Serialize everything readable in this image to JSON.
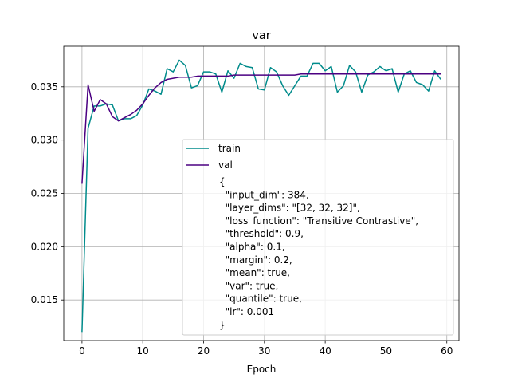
{
  "chart_data": {
    "type": "line",
    "title": "var",
    "xlabel": "Epoch",
    "ylabel": "",
    "xlim": [
      -3,
      62
    ],
    "ylim": [
      0.0112,
      0.0388
    ],
    "x_ticks": [
      0,
      10,
      20,
      30,
      40,
      50,
      60
    ],
    "y_ticks": [
      0.015,
      0.02,
      0.025,
      0.03,
      0.035
    ],
    "y_tick_labels": [
      "0.015",
      "0.020",
      "0.025",
      "0.030",
      "0.035"
    ],
    "grid": true,
    "legend_position": "center-right",
    "x": [
      0,
      1,
      2,
      3,
      4,
      5,
      6,
      7,
      8,
      9,
      10,
      11,
      12,
      13,
      14,
      15,
      16,
      17,
      18,
      19,
      20,
      21,
      22,
      23,
      24,
      25,
      26,
      27,
      28,
      29,
      30,
      31,
      32,
      33,
      34,
      35,
      36,
      37,
      38,
      39,
      40,
      41,
      42,
      43,
      44,
      45,
      46,
      47,
      48,
      49,
      50,
      51,
      52,
      53,
      54,
      55,
      56,
      57,
      58,
      59
    ],
    "series": [
      {
        "name": "train",
        "color": "#008B8B",
        "values": [
          0.012,
          0.0311,
          0.0332,
          0.0332,
          0.0334,
          0.0333,
          0.0318,
          0.032,
          0.032,
          0.0323,
          0.0333,
          0.0348,
          0.0346,
          0.0343,
          0.0367,
          0.0364,
          0.0375,
          0.037,
          0.0349,
          0.0351,
          0.0364,
          0.0364,
          0.0362,
          0.0345,
          0.0365,
          0.0358,
          0.0372,
          0.0369,
          0.0368,
          0.0348,
          0.0347,
          0.0368,
          0.0364,
          0.0351,
          0.0342,
          0.0351,
          0.036,
          0.036,
          0.0372,
          0.0372,
          0.0365,
          0.0369,
          0.0345,
          0.0351,
          0.037,
          0.0364,
          0.0345,
          0.0361,
          0.0364,
          0.0369,
          0.0365,
          0.0367,
          0.0345,
          0.0362,
          0.0365,
          0.0354,
          0.0352,
          0.0346,
          0.0365,
          0.0357
        ]
      },
      {
        "name": "val",
        "color": "#4B0082",
        "values": [
          0.0259,
          0.0352,
          0.0327,
          0.0338,
          0.0334,
          0.0322,
          0.0318,
          0.0321,
          0.0324,
          0.0328,
          0.0334,
          0.0342,
          0.0349,
          0.0354,
          0.0357,
          0.0358,
          0.0359,
          0.0359,
          0.0359,
          0.036,
          0.036,
          0.036,
          0.036,
          0.036,
          0.036,
          0.0361,
          0.0361,
          0.0361,
          0.0361,
          0.0361,
          0.0361,
          0.0361,
          0.0361,
          0.0361,
          0.0361,
          0.0361,
          0.0362,
          0.0362,
          0.0362,
          0.0362,
          0.0362,
          0.0362,
          0.0362,
          0.0362,
          0.0362,
          0.0362,
          0.0362,
          0.0362,
          0.0362,
          0.0362,
          0.0362,
          0.0362,
          0.0362,
          0.0362,
          0.0362,
          0.0362,
          0.0362,
          0.0362,
          0.0362,
          0.0362
        ]
      }
    ],
    "annotation": [
      "{",
      "  \"input_dim\": 384,",
      "  \"layer_dims\": \"[32, 32, 32]\",",
      "  \"loss_function\": \"Transitive Contrastive\",",
      "  \"threshold\": 0.9,",
      "  \"alpha\": 0.1,",
      "  \"margin\": 0.2,",
      "  \"mean\": true,",
      "  \"var\": true,",
      "  \"quantile\": true,",
      "  \"lr\": 0.001",
      "}"
    ]
  }
}
